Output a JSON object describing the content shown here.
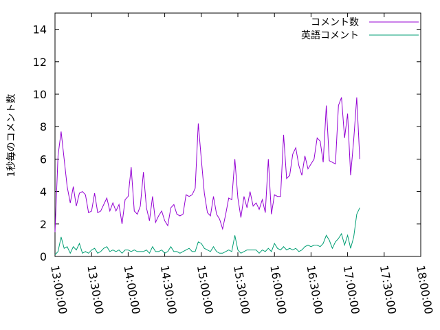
{
  "chart_data": {
    "type": "line",
    "title": "",
    "xlabel": "",
    "ylabel": "1秒毎のコメント数",
    "x_tick_labels": [
      "13:00:00",
      "13:30:00",
      "14:00:00",
      "14:30:00",
      "15:00:00",
      "15:30:00",
      "16:00:00",
      "16:30:00",
      "17:00:00",
      "17:30:00",
      "18:00:00"
    ],
    "x_ticks": [
      "13:00:00",
      "13:30:00",
      "14:00:00",
      "14:30:00",
      "15:00:00",
      "15:30:00",
      "16:00:00",
      "16:30:00",
      "17:00:00",
      "17:30:00",
      "18:00:00"
    ],
    "xlim": [
      "13:00:00",
      "18:00:00"
    ],
    "x_step_minutes": 2.5,
    "ylim": [
      0,
      15
    ],
    "y_ticks": [
      0,
      2,
      4,
      6,
      8,
      10,
      12,
      14
    ],
    "grid": false,
    "legend": "top-right",
    "series": [
      {
        "name": "コメント数",
        "color": "#9400d3",
        "x_start": "13:00:00",
        "values": [
          1.5,
          6.2,
          7.7,
          6.0,
          4.3,
          3.3,
          4.3,
          3.1,
          3.9,
          4.0,
          3.8,
          2.7,
          2.8,
          3.9,
          2.7,
          2.8,
          3.2,
          3.6,
          2.8,
          3.3,
          2.8,
          3.2,
          2.0,
          3.5,
          3.7,
          5.5,
          2.8,
          2.6,
          3.1,
          5.2,
          3.0,
          2.2,
          3.7,
          2.1,
          2.5,
          2.8,
          2.2,
          1.9,
          3.0,
          3.2,
          2.6,
          2.5,
          2.6,
          3.8,
          3.7,
          3.8,
          4.2,
          8.2,
          6.0,
          3.9,
          2.7,
          2.5,
          3.7,
          2.6,
          2.3,
          1.7,
          2.6,
          3.6,
          3.5,
          6.0,
          3.6,
          2.4,
          3.7,
          3.0,
          4.0,
          3.1,
          3.3,
          2.9,
          3.5,
          2.7,
          6.0,
          2.6,
          3.8,
          3.7,
          3.7,
          7.5,
          4.8,
          5.0,
          6.3,
          6.7,
          5.6,
          5.0,
          6.2,
          5.4,
          5.7,
          6.0,
          7.3,
          7.1,
          5.8,
          9.3,
          5.9,
          5.8,
          5.7,
          9.3,
          9.8,
          7.3,
          8.8,
          5.0,
          7.2,
          9.8,
          6.0
        ]
      },
      {
        "name": "英語コメント",
        "color": "#009e73",
        "x_start": "13:00:00",
        "values": [
          0.1,
          0.3,
          1.2,
          0.5,
          0.6,
          0.2,
          0.6,
          0.4,
          0.8,
          0.2,
          0.3,
          0.2,
          0.4,
          0.5,
          0.2,
          0.3,
          0.5,
          0.6,
          0.3,
          0.4,
          0.3,
          0.4,
          0.2,
          0.4,
          0.4,
          0.3,
          0.4,
          0.3,
          0.3,
          0.3,
          0.4,
          0.2,
          0.6,
          0.3,
          0.3,
          0.4,
          0.2,
          0.3,
          0.6,
          0.3,
          0.3,
          0.2,
          0.3,
          0.4,
          0.5,
          0.3,
          0.3,
          0.9,
          0.8,
          0.5,
          0.4,
          0.3,
          0.6,
          0.3,
          0.2,
          0.2,
          0.3,
          0.4,
          0.3,
          1.3,
          0.4,
          0.2,
          0.3,
          0.4,
          0.4,
          0.4,
          0.4,
          0.2,
          0.4,
          0.3,
          0.5,
          0.3,
          0.8,
          0.5,
          0.4,
          0.6,
          0.4,
          0.5,
          0.4,
          0.5,
          0.3,
          0.4,
          0.6,
          0.7,
          0.6,
          0.7,
          0.7,
          0.6,
          0.8,
          1.3,
          1.0,
          0.5,
          0.9,
          1.1,
          1.4,
          0.7,
          1.3,
          0.5,
          1.2,
          2.6,
          3.0
        ]
      }
    ]
  }
}
